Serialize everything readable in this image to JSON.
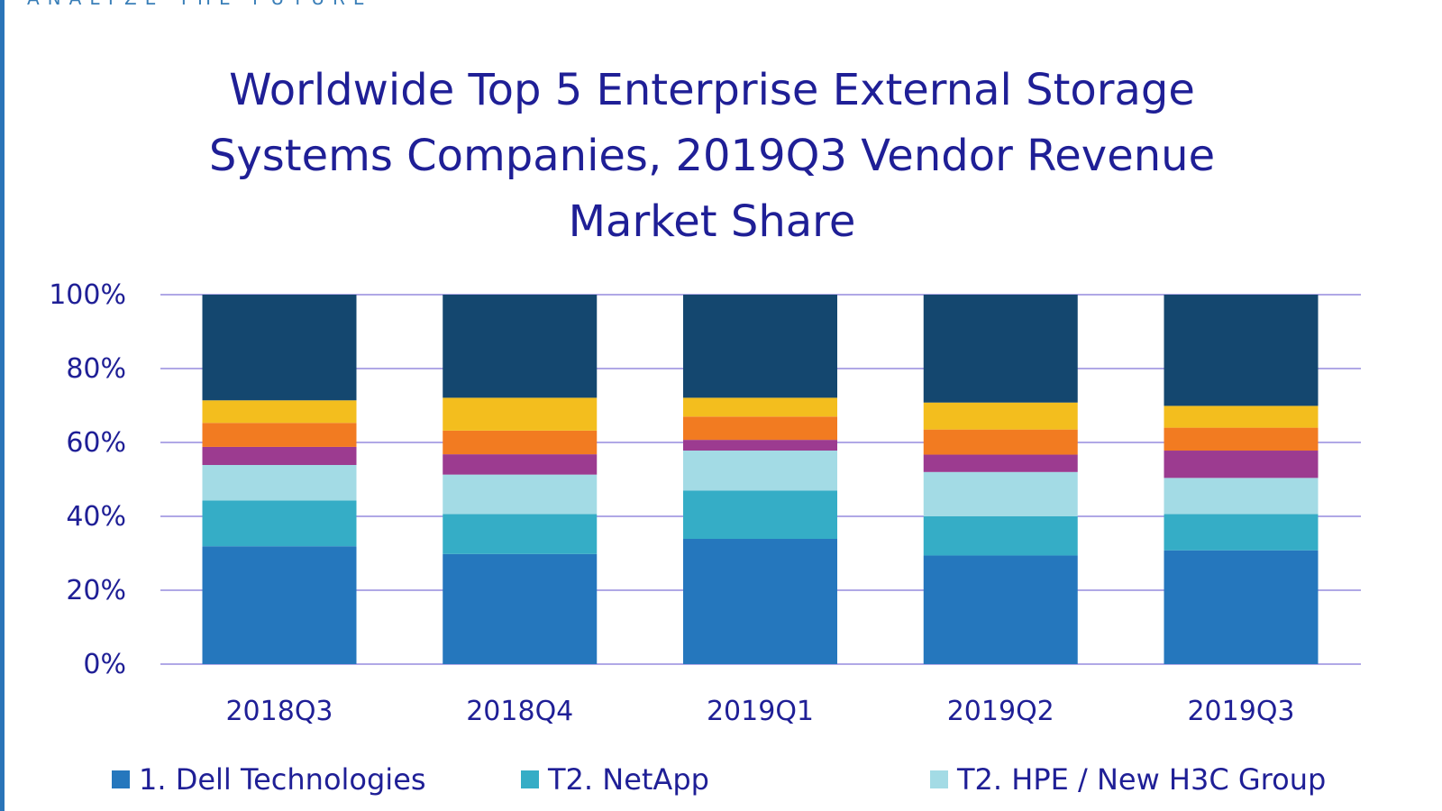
{
  "header": {
    "tagline": "ANALYZE THE FUTURE"
  },
  "chart_data": {
    "type": "bar",
    "stacked": true,
    "title": "Worldwide Top 5 Enterprise External Storage Systems Companies, 2019Q3 Vendor Revenue Market Share",
    "title_lines": [
      "Worldwide Top 5 Enterprise External Storage",
      "Systems Companies, 2019Q3 Vendor Revenue",
      "Market Share"
    ],
    "xlabel": "",
    "ylabel": "",
    "ylim": [
      0,
      100
    ],
    "yticks": [
      "0%",
      "20%",
      "40%",
      "60%",
      "80%",
      "100%"
    ],
    "grid": true,
    "legend_position": "bottom",
    "categories": [
      "2018Q3",
      "2018Q4",
      "2019Q1",
      "2019Q2",
      "2019Q3"
    ],
    "series": [
      {
        "name": "1. Dell Technologies",
        "color": "#2577bd",
        "values": [
          31.9,
          29.8,
          33.9,
          29.4,
          30.8
        ]
      },
      {
        "name": "T2. NetApp",
        "color": "#35adc6",
        "values": [
          12.4,
          10.8,
          13.1,
          10.6,
          9.8
        ]
      },
      {
        "name": "T2. HPE / New H3C Group",
        "color": "#a3dbe5",
        "values": [
          9.6,
          10.7,
          10.8,
          12.0,
          9.8
        ]
      },
      {
        "color": "#9c3b90",
        "values": [
          4.9,
          5.5,
          2.9,
          4.7,
          7.4
        ]
      },
      {
        "color": "#f27b21",
        "values": [
          6.5,
          6.4,
          6.3,
          6.8,
          6.2
        ]
      },
      {
        "color": "#f3be1e",
        "values": [
          6.1,
          8.9,
          5.1,
          7.3,
          5.9
        ]
      },
      {
        "color": "#14476f",
        "values": [
          28.6,
          27.9,
          27.9,
          29.2,
          30.1
        ]
      }
    ],
    "gridline_color": "#b0a8e6"
  }
}
